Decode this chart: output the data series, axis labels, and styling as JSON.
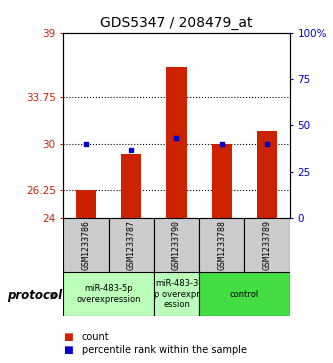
{
  "title": "GDS5347 / 208479_at",
  "samples": [
    "GSM1233786",
    "GSM1233787",
    "GSM1233790",
    "GSM1233788",
    "GSM1233789"
  ],
  "red_values": [
    26.25,
    29.2,
    36.2,
    30.0,
    31.0
  ],
  "blue_values": [
    30.0,
    29.5,
    30.5,
    30.0,
    30.0
  ],
  "y_min": 24,
  "y_max": 39,
  "y_ticks_left": [
    24,
    26.25,
    30,
    33.75,
    39
  ],
  "y_ticks_right": [
    0,
    25,
    50,
    75,
    100
  ],
  "y_ticks_right_labels": [
    "0",
    "25",
    "50",
    "75",
    "100%"
  ],
  "dotted_lines": [
    26.25,
    30,
    33.75
  ],
  "bar_bottom": 24,
  "groups": [
    {
      "label": "miR-483-5p\noverexpression",
      "start": 0,
      "end": 2,
      "color": "#bbffbb"
    },
    {
      "label": "miR-483-3\np overexpr\nession",
      "start": 2,
      "end": 3,
      "color": "#bbffbb"
    },
    {
      "label": "control",
      "start": 3,
      "end": 5,
      "color": "#44dd44"
    }
  ],
  "protocol_label": "protocol",
  "legend_count_color": "#cc2200",
  "legend_pct_color": "#0000cc",
  "bar_color": "#cc2200",
  "dot_color": "#0000cc",
  "label_color_left": "#cc2200",
  "label_color_right": "#0000cc",
  "sample_box_color": "#cccccc",
  "title_fontsize": 10,
  "tick_fontsize": 7.5,
  "sample_fontsize": 6
}
